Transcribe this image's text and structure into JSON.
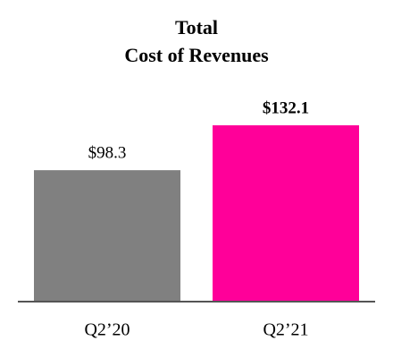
{
  "chart_data": {
    "type": "bar",
    "title": [
      "Total",
      "Cost of Revenues"
    ],
    "categories": [
      "Q2’20",
      "Q2’21"
    ],
    "values": [
      98.3,
      132.1
    ],
    "value_labels": [
      "$98.3",
      "$132.1"
    ],
    "colors": [
      "#808080",
      "#ff0099"
    ]
  }
}
